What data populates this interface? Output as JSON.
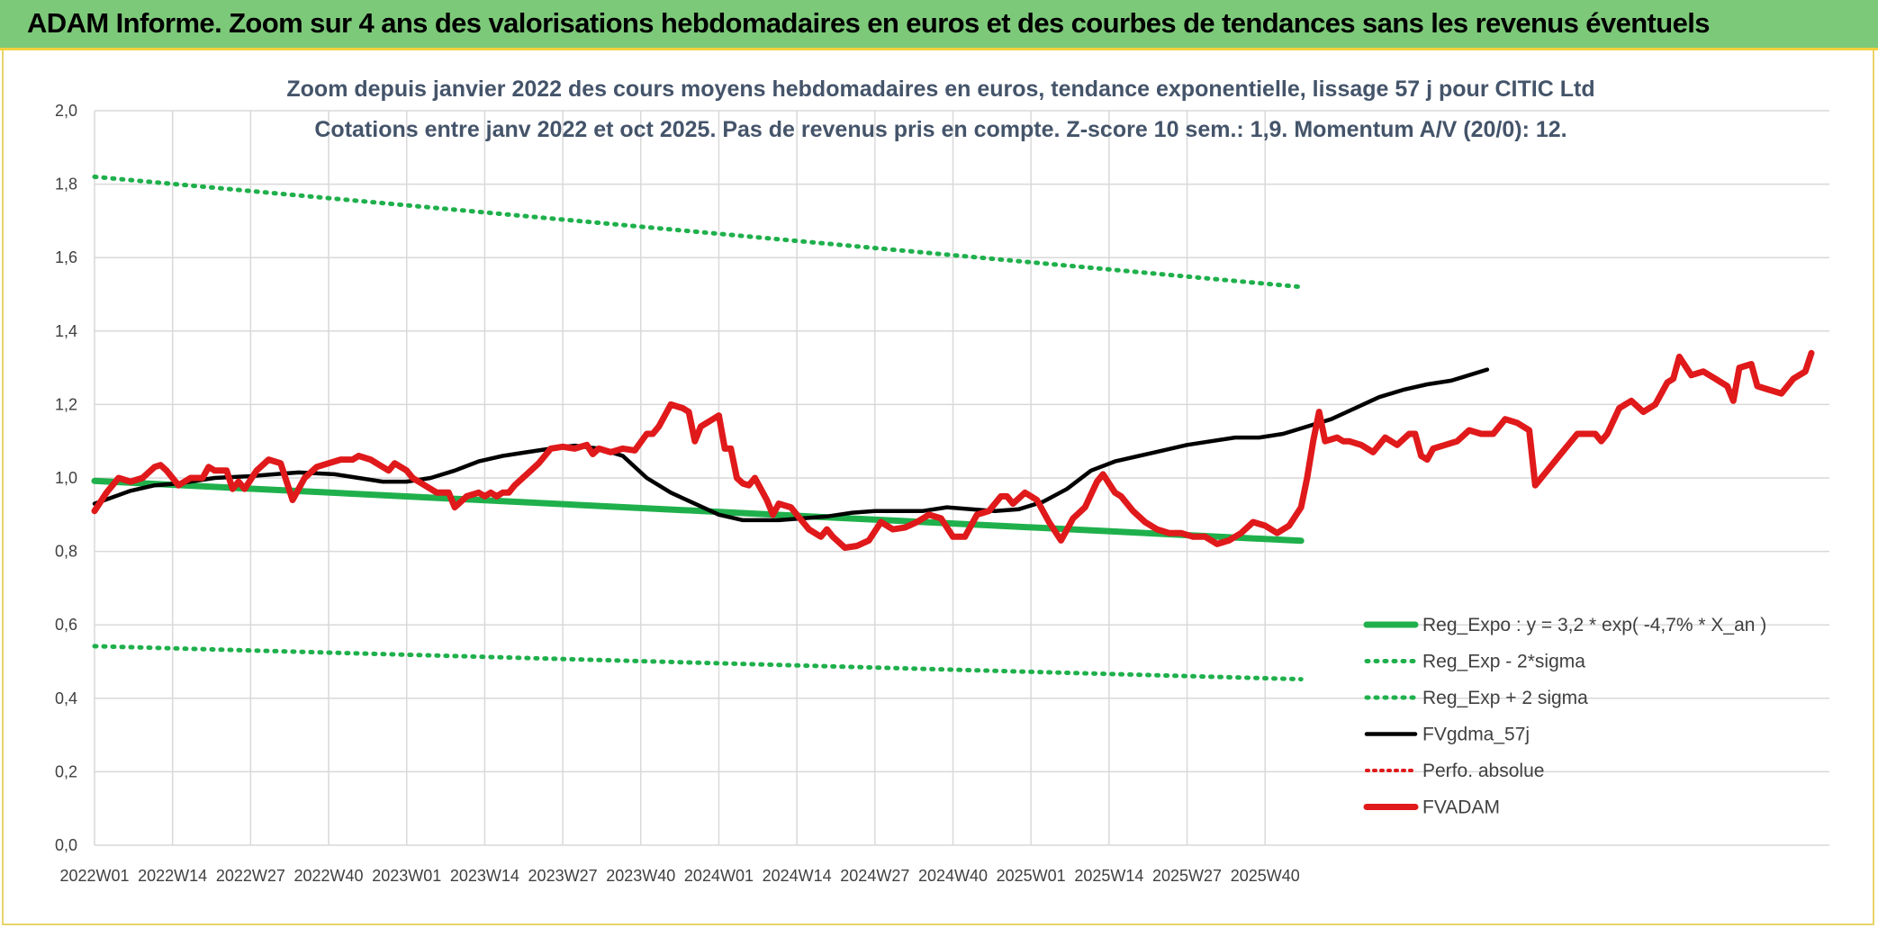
{
  "banner": {
    "title": "ADAM Informe. Zoom sur 4 ans des valorisations hebdomadaires en euros et des courbes de tendances sans les revenus éventuels"
  },
  "colors": {
    "reg_expo": "#1fb04c",
    "sigma": "#1fb04c",
    "fvgdma": "#000000",
    "perfo": "#e0191b",
    "fvadam": "#e0191b",
    "grid": "#d9d9d9",
    "banner": "#7dc97a"
  },
  "chart_data": {
    "type": "line",
    "title": [
      "Zoom depuis janvier 2022 des cours moyens hebdomadaires en euros, tendance exponentielle, lissage 57 j pour CITIC Ltd",
      "Cotations entre janv 2022 et oct 2025. Pas de revenus pris en compte. Z-score 10 sem.: 1,9. Momentum A/V (20/0): 12."
    ],
    "xlabel": "",
    "ylabel": "",
    "ylim": [
      0,
      2
    ],
    "yticks": [
      "0,0",
      "0,2",
      "0,4",
      "0,6",
      "0,8",
      "1,0",
      "1,2",
      "1,4",
      "1,6",
      "1,8",
      "2,0"
    ],
    "xticks": [
      "2022W01",
      "2022W14",
      "2022W27",
      "2022W40",
      "2023W01",
      "2023W14",
      "2023W27",
      "2023W40",
      "2024W01",
      "2024W14",
      "2024W27",
      "2024W40",
      "2025W01",
      "2025W14",
      "2025W27",
      "2025W40"
    ],
    "x_range_weeks": [
      0,
      201
    ],
    "grid": true,
    "legend_position": "bottom-right",
    "series": [
      {
        "name": "Reg_Expo : y = 3,2 * exp( -4,7% *  X_an )",
        "style": "solid-thick",
        "points": [
          [
            0,
            0.992
          ],
          [
            201,
            0.829
          ]
        ]
      },
      {
        "name": "Reg_Exp - 2*sigma",
        "style": "dotted",
        "points": [
          [
            0,
            0.542
          ],
          [
            201,
            0.452
          ]
        ]
      },
      {
        "name": "Reg_Exp + 2 sigma",
        "style": "dotted",
        "points": [
          [
            0,
            1.82
          ],
          [
            201,
            1.52
          ]
        ]
      },
      {
        "name": "FVgdma_57j",
        "style": "solid",
        "points": [
          [
            0,
            0.93
          ],
          [
            6,
            0.965
          ],
          [
            10,
            0.98
          ],
          [
            14,
            0.985
          ],
          [
            20,
            1.0
          ],
          [
            26,
            1.005
          ],
          [
            30,
            1.01
          ],
          [
            34,
            1.015
          ],
          [
            40,
            1.01
          ],
          [
            44,
            1.0
          ],
          [
            48,
            0.99
          ],
          [
            52,
            0.99
          ],
          [
            56,
            1.0
          ],
          [
            60,
            1.02
          ],
          [
            64,
            1.045
          ],
          [
            68,
            1.06
          ],
          [
            72,
            1.07
          ],
          [
            76,
            1.08
          ],
          [
            80,
            1.088
          ],
          [
            84,
            1.08
          ],
          [
            88,
            1.06
          ],
          [
            92,
            1.0
          ],
          [
            96,
            0.96
          ],
          [
            100,
            0.93
          ],
          [
            104,
            0.9
          ],
          [
            108,
            0.885
          ],
          [
            114,
            0.885
          ],
          [
            118,
            0.89
          ],
          [
            122,
            0.895
          ],
          [
            126,
            0.905
          ],
          [
            130,
            0.91
          ],
          [
            134,
            0.91
          ],
          [
            138,
            0.91
          ],
          [
            142,
            0.92
          ],
          [
            146,
            0.915
          ],
          [
            150,
            0.91
          ],
          [
            154,
            0.915
          ],
          [
            158,
            0.935
          ],
          [
            162,
            0.97
          ],
          [
            166,
            1.02
          ],
          [
            170,
            1.045
          ],
          [
            174,
            1.06
          ],
          [
            178,
            1.075
          ],
          [
            182,
            1.09
          ],
          [
            186,
            1.1
          ],
          [
            190,
            1.11
          ],
          [
            194,
            1.11
          ],
          [
            198,
            1.12
          ],
          [
            202,
            1.14
          ],
          [
            206,
            1.16
          ],
          [
            210,
            1.19
          ],
          [
            214,
            1.22
          ],
          [
            218,
            1.24
          ],
          [
            222,
            1.255
          ],
          [
            226,
            1.265
          ],
          [
            228,
            1.275
          ],
          [
            232,
            1.295
          ]
        ]
      },
      {
        "name": "Perfo. absolue",
        "style": "dotted",
        "points": []
      },
      {
        "name": "FVADAM",
        "style": "solid-thick",
        "points": [
          [
            0,
            0.91
          ],
          [
            2,
            0.96
          ],
          [
            4,
            1.0
          ],
          [
            6,
            0.99
          ],
          [
            8,
            1.0
          ],
          [
            10,
            1.03
          ],
          [
            11,
            1.035
          ],
          [
            12,
            1.02
          ],
          [
            14,
            0.98
          ],
          [
            16,
            1.0
          ],
          [
            18,
            1.0
          ],
          [
            19,
            1.03
          ],
          [
            20,
            1.02
          ],
          [
            22,
            1.02
          ],
          [
            23,
            0.97
          ],
          [
            24,
            0.99
          ],
          [
            25,
            0.97
          ],
          [
            27,
            1.02
          ],
          [
            29,
            1.05
          ],
          [
            31,
            1.04
          ],
          [
            33,
            0.94
          ],
          [
            35,
            1.0
          ],
          [
            37,
            1.03
          ],
          [
            39,
            1.04
          ],
          [
            41,
            1.05
          ],
          [
            43,
            1.05
          ],
          [
            44,
            1.06
          ],
          [
            46,
            1.05
          ],
          [
            48,
            1.03
          ],
          [
            49,
            1.02
          ],
          [
            50,
            1.04
          ],
          [
            52,
            1.02
          ],
          [
            53,
            1.0
          ],
          [
            55,
            0.98
          ],
          [
            57,
            0.96
          ],
          [
            59,
            0.96
          ],
          [
            60,
            0.92
          ],
          [
            62,
            0.95
          ],
          [
            64,
            0.96
          ],
          [
            65,
            0.95
          ],
          [
            66,
            0.96
          ],
          [
            67,
            0.95
          ],
          [
            68,
            0.96
          ],
          [
            69,
            0.96
          ],
          [
            70,
            0.98
          ],
          [
            72,
            1.01
          ],
          [
            74,
            1.04
          ],
          [
            76,
            1.08
          ],
          [
            78,
            1.085
          ],
          [
            80,
            1.08
          ],
          [
            82,
            1.09
          ],
          [
            83,
            1.065
          ],
          [
            84,
            1.08
          ],
          [
            86,
            1.07
          ],
          [
            88,
            1.08
          ],
          [
            90,
            1.075
          ],
          [
            92,
            1.12
          ],
          [
            93,
            1.12
          ],
          [
            94,
            1.14
          ],
          [
            96,
            1.2
          ],
          [
            98,
            1.19
          ],
          [
            99,
            1.18
          ],
          [
            100,
            1.1
          ],
          [
            101,
            1.14
          ],
          [
            103,
            1.16
          ],
          [
            104,
            1.17
          ],
          [
            105,
            1.08
          ],
          [
            106,
            1.08
          ],
          [
            107,
            1.0
          ],
          [
            108,
            0.985
          ],
          [
            109,
            0.98
          ],
          [
            110,
            1.0
          ],
          [
            111,
            0.97
          ],
          [
            112,
            0.94
          ],
          [
            113,
            0.9
          ],
          [
            114,
            0.93
          ],
          [
            116,
            0.92
          ],
          [
            117,
            0.9
          ],
          [
            119,
            0.86
          ],
          [
            121,
            0.84
          ],
          [
            122,
            0.86
          ],
          [
            123,
            0.84
          ],
          [
            125,
            0.81
          ],
          [
            127,
            0.815
          ],
          [
            129,
            0.83
          ],
          [
            131,
            0.88
          ],
          [
            133,
            0.86
          ],
          [
            135,
            0.865
          ],
          [
            137,
            0.88
          ],
          [
            139,
            0.9
          ],
          [
            141,
            0.89
          ],
          [
            143,
            0.84
          ],
          [
            145,
            0.84
          ],
          [
            147,
            0.9
          ],
          [
            149,
            0.91
          ],
          [
            151,
            0.95
          ],
          [
            152,
            0.95
          ],
          [
            153,
            0.93
          ],
          [
            155,
            0.96
          ],
          [
            157,
            0.94
          ],
          [
            159,
            0.88
          ],
          [
            161,
            0.83
          ],
          [
            163,
            0.89
          ],
          [
            165,
            0.92
          ],
          [
            167,
            0.99
          ],
          [
            168,
            1.01
          ],
          [
            170,
            0.96
          ],
          [
            171,
            0.95
          ],
          [
            173,
            0.91
          ],
          [
            175,
            0.88
          ],
          [
            177,
            0.86
          ],
          [
            179,
            0.85
          ],
          [
            181,
            0.85
          ],
          [
            183,
            0.84
          ],
          [
            185,
            0.84
          ],
          [
            187,
            0.82
          ],
          [
            189,
            0.83
          ],
          [
            191,
            0.85
          ],
          [
            193,
            0.88
          ],
          [
            195,
            0.87
          ],
          [
            197,
            0.85
          ],
          [
            199,
            0.87
          ],
          [
            201,
            0.92
          ],
          [
            202,
            1.0
          ],
          [
            203,
            1.1
          ],
          [
            204,
            1.18
          ],
          [
            205,
            1.1
          ],
          [
            207,
            1.11
          ],
          [
            208,
            1.1
          ],
          [
            209,
            1.1
          ],
          [
            211,
            1.09
          ],
          [
            213,
            1.07
          ],
          [
            215,
            1.11
          ],
          [
            217,
            1.09
          ],
          [
            219,
            1.12
          ],
          [
            220,
            1.12
          ],
          [
            221,
            1.06
          ],
          [
            222,
            1.05
          ],
          [
            223,
            1.08
          ],
          [
            225,
            1.09
          ],
          [
            227,
            1.1
          ],
          [
            229,
            1.13
          ],
          [
            231,
            1.12
          ],
          [
            233,
            1.12
          ],
          [
            235,
            1.16
          ],
          [
            237,
            1.15
          ],
          [
            239,
            1.13
          ],
          [
            240,
            0.98
          ],
          [
            242,
            1.02
          ],
          [
            244,
            1.06
          ],
          [
            246,
            1.1
          ],
          [
            247,
            1.12
          ],
          [
            248,
            1.12
          ],
          [
            250,
            1.12
          ],
          [
            251,
            1.1
          ],
          [
            252,
            1.12
          ],
          [
            254,
            1.19
          ],
          [
            255,
            1.2
          ],
          [
            256,
            1.21
          ],
          [
            258,
            1.18
          ],
          [
            260,
            1.2
          ],
          [
            262,
            1.26
          ],
          [
            263,
            1.27
          ],
          [
            264,
            1.33
          ],
          [
            266,
            1.28
          ],
          [
            268,
            1.29
          ],
          [
            270,
            1.27
          ],
          [
            272,
            1.25
          ],
          [
            273,
            1.21
          ],
          [
            274,
            1.3
          ],
          [
            276,
            1.31
          ],
          [
            277,
            1.25
          ],
          [
            279,
            1.24
          ],
          [
            281,
            1.23
          ],
          [
            283,
            1.27
          ],
          [
            285,
            1.29
          ],
          [
            286,
            1.34
          ]
        ]
      }
    ]
  }
}
